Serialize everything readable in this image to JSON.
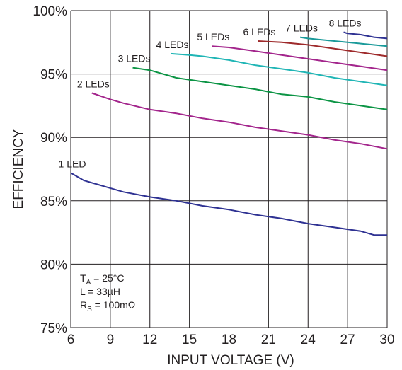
{
  "chart_data": {
    "type": "line",
    "title": "",
    "xlabel": "INPUT VOLTAGE (V)",
    "ylabel": "EFFICIENCY",
    "xlim": [
      6,
      30
    ],
    "ylim": [
      75,
      100
    ],
    "x_ticks": [
      "6",
      "9",
      "12",
      "15",
      "18",
      "21",
      "24",
      "27",
      "30"
    ],
    "y_ticks": [
      "75%",
      "80%",
      "85%",
      "90%",
      "95%",
      "100%"
    ],
    "grid": true,
    "legend": "inline labels near each curve",
    "series": [
      {
        "name": "1 LED",
        "color": "#2e3192",
        "x": [
          6,
          7,
          8,
          9,
          10,
          12,
          14,
          16,
          18,
          20,
          22,
          24,
          26,
          28,
          29,
          30
        ],
        "y": [
          87.2,
          86.6,
          86.3,
          86.0,
          85.7,
          85.3,
          85.0,
          84.6,
          84.3,
          83.9,
          83.6,
          83.2,
          82.9,
          82.6,
          82.3,
          82.3
        ]
      },
      {
        "name": "2 LEDs",
        "color": "#a3258c",
        "x": [
          7.6,
          9,
          10,
          12,
          14,
          16,
          18,
          20,
          22,
          24,
          26,
          28,
          30
        ],
        "y": [
          93.5,
          93.0,
          92.7,
          92.2,
          91.9,
          91.5,
          91.2,
          90.8,
          90.5,
          90.2,
          89.8,
          89.5,
          89.1
        ]
      },
      {
        "name": "3 LEDs",
        "color": "#0b9444",
        "x": [
          10.7,
          12,
          14,
          16,
          18,
          20,
          22,
          24,
          26,
          28,
          30
        ],
        "y": [
          95.5,
          95.3,
          94.7,
          94.4,
          94.1,
          93.8,
          93.4,
          93.2,
          92.8,
          92.5,
          92.2
        ]
      },
      {
        "name": "4 LEDs",
        "color": "#1fb5b5",
        "x": [
          13.6,
          15,
          16,
          18,
          20,
          22,
          24,
          26,
          28,
          30
        ],
        "y": [
          96.6,
          96.5,
          96.4,
          96.1,
          95.7,
          95.4,
          95.1,
          94.7,
          94.4,
          94.1
        ]
      },
      {
        "name": "5 LEDs",
        "color": "#a3258c",
        "x": [
          16.7,
          18,
          20,
          22,
          24,
          26,
          28,
          30
        ],
        "y": [
          97.2,
          97.1,
          96.8,
          96.5,
          96.2,
          95.9,
          95.6,
          95.3
        ]
      },
      {
        "name": "6 LEDs",
        "color": "#9e2a2b",
        "x": [
          20.2,
          22,
          24,
          26,
          28,
          30
        ],
        "y": [
          97.6,
          97.5,
          97.3,
          97.0,
          96.7,
          96.4
        ]
      },
      {
        "name": "7 LEDs",
        "color": "#1a9a9a",
        "x": [
          23.4,
          24,
          26,
          28,
          30
        ],
        "y": [
          97.9,
          97.8,
          97.6,
          97.4,
          97.2
        ]
      },
      {
        "name": "8 LEDs",
        "color": "#2e3192",
        "x": [
          26.7,
          27,
          28,
          29,
          30
        ],
        "y": [
          98.3,
          98.2,
          98.1,
          97.9,
          97.8
        ]
      }
    ],
    "annotations": {
      "conditions": [
        {
          "main": "T",
          "sub": "A",
          "rest": " = 25°C"
        },
        {
          "main": "L = 33µH",
          "sub": "",
          "rest": ""
        },
        {
          "main": "R",
          "sub": "S",
          "rest": " = 100mΩ"
        }
      ]
    }
  }
}
